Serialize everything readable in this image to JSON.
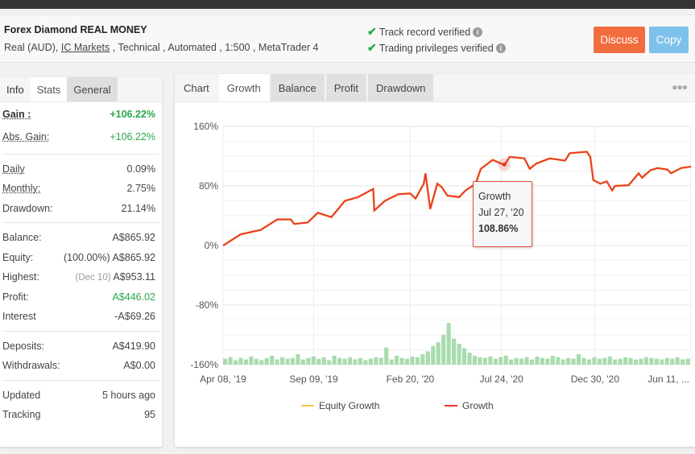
{
  "header": {
    "title": "Forex Diamond REAL MONEY",
    "meta_prefix": "Real (AUD),",
    "broker": "IC Markets",
    "meta_suffix": ", Technical , Automated , 1:500 , MetaTrader 4",
    "verifications": [
      "Track record verified",
      "Trading privileges verified"
    ],
    "discuss": "Discuss",
    "copy": "Copy"
  },
  "left_tabs": [
    "Info",
    "Stats",
    "General"
  ],
  "stats": {
    "gain": {
      "label": "Gain :",
      "value": "+106.22%"
    },
    "abs_gain": {
      "label": "Abs. Gain:",
      "value": "+106.22%"
    },
    "daily": {
      "label": "Daily",
      "value": "0.09%"
    },
    "monthly": {
      "label": "Monthly:",
      "value": "2.75%"
    },
    "drawdown": {
      "label": "Drawdown:",
      "value": "21.14%"
    },
    "balance": {
      "label": "Balance:",
      "value": "A$865.92"
    },
    "equity": {
      "label": "Equity:",
      "note": "(100.00%)",
      "value": "A$865.92"
    },
    "highest": {
      "label": "Highest:",
      "note": "(Dec 10)",
      "value": "A$953.11"
    },
    "profit": {
      "label": "Profit:",
      "value": "A$446.02"
    },
    "interest": {
      "label": "Interest",
      "value": "-A$69.26"
    },
    "deposits": {
      "label": "Deposits:",
      "value": "A$419.90"
    },
    "withdrawals": {
      "label": "Withdrawals:",
      "value": "A$0.00"
    },
    "updated": {
      "label": "Updated",
      "value": "5 hours ago"
    },
    "tracking": {
      "label": "Tracking",
      "value": "95"
    }
  },
  "chart_tabs": [
    "Chart",
    "Growth",
    "Balance",
    "Profit",
    "Drawdown"
  ],
  "colors": {
    "growth": "#e8392b",
    "equity": "#f5c342",
    "volume": "#a8dcae",
    "discuss": "#f26d3d",
    "copy": "#7ec1ea"
  },
  "chart_data": {
    "type": "line",
    "ylim": [
      -160,
      160
    ],
    "yticks": [
      "160%",
      "80%",
      "0%",
      "-80%",
      "-160%"
    ],
    "ytick_values": [
      160,
      80,
      0,
      -80,
      -160
    ],
    "xticks": [
      "Apr 08, '19",
      "Sep 09, '19",
      "Feb 20, '20",
      "Jul 24, '20",
      "Dec 30, '20",
      "Jun 11, ..."
    ],
    "xtick_days": [
      0,
      154,
      318,
      473,
      632,
      795
    ],
    "xlim_days": [
      0,
      795
    ],
    "legend": [
      "Equity Growth",
      "Growth"
    ],
    "series": [
      {
        "name": "Growth",
        "days": [
          0,
          30,
          64,
          92,
          115,
          121,
          144,
          161,
          184,
          207,
          229,
          255,
          257,
          275,
          298,
          318,
          327,
          341,
          344,
          352,
          364,
          372,
          381,
          401,
          412,
          429,
          438,
          458,
          473,
          478,
          487,
          512,
          521,
          532,
          555,
          581,
          589,
          618,
          624,
          629,
          641,
          652,
          661,
          666,
          689,
          706,
          712,
          726,
          738,
          755,
          761,
          778,
          795
        ],
        "values": [
          0,
          15,
          21,
          35,
          35,
          29,
          31,
          44,
          38,
          60,
          65,
          76,
          47,
          60,
          69,
          70,
          63,
          83,
          97,
          49,
          83,
          78,
          67,
          65,
          74,
          83,
          103,
          115,
          110,
          108,
          119,
          117,
          103,
          110,
          117,
          114,
          124,
          126,
          119,
          88,
          83,
          86,
          74,
          80,
          81,
          97,
          91,
          101,
          104,
          102,
          97,
          104,
          106
        ]
      }
    ],
    "volume_series": {
      "name": "Volume",
      "values": [
        8,
        10,
        6,
        9,
        7,
        11,
        8,
        6,
        9,
        12,
        7,
        10,
        8,
        9,
        14,
        7,
        9,
        11,
        8,
        10,
        6,
        12,
        9,
        8,
        10,
        7,
        9,
        6,
        8,
        10,
        9,
        23,
        7,
        12,
        9,
        8,
        11,
        10,
        14,
        18,
        25,
        30,
        40,
        56,
        35,
        28,
        22,
        16,
        12,
        10,
        9,
        11,
        8,
        10,
        12,
        7,
        9,
        8,
        10,
        7,
        11,
        9,
        8,
        12,
        10,
        7,
        9,
        8,
        14,
        9,
        7,
        10,
        8,
        9,
        11,
        7,
        8,
        10,
        9,
        7,
        8,
        10,
        9,
        8,
        7,
        9,
        8,
        10,
        7,
        8
      ]
    },
    "tooltip": {
      "series": "Growth",
      "date": "Jul 27, '20",
      "value": "108.86%"
    }
  }
}
